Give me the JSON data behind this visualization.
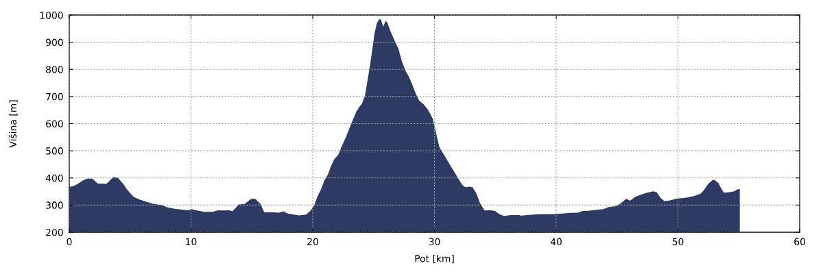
{
  "chart_data": {
    "type": "area",
    "xlabel": "Pot [km]",
    "ylabel": "Višina [m]",
    "color": "#2c3a64",
    "x": [
      0,
      0.32,
      0.69,
      1.16,
      1.54,
      1.91,
      2.35,
      2.66,
      3.04,
      3.32,
      3.6,
      3.98,
      4.41,
      4.82,
      5.29,
      5.85,
      6.42,
      6.89,
      7.64,
      8.01,
      8.57,
      9.14,
      9.79,
      10.04,
      10.26,
      11.1,
      11.76,
      12.23,
      12.7,
      13.17,
      13.41,
      13.92,
      14.39,
      14.95,
      15.29,
      15.7,
      16.02,
      16.64,
      17.2,
      17.58,
      17.95,
      18.9,
      19.46,
      19.83,
      20.11,
      20.39,
      20.67,
      20.96,
      21.24,
      21.52,
      21.8,
      22.08,
      22.36,
      22.73,
      23.11,
      23.58,
      23.86,
      24.04,
      24.29,
      24.51,
      24.7,
      24.89,
      25.07,
      25.26,
      25.45,
      25.6,
      25.79,
      25.98,
      26.1,
      26.39,
      26.76,
      27.04,
      27.32,
      27.6,
      27.88,
      28.16,
      28.45,
      28.73,
      29.1,
      29.38,
      29.66,
      29.85,
      30.04,
      30.22,
      30.41,
      30.69,
      30.97,
      31.25,
      31.54,
      31.82,
      32.1,
      32.38,
      32.57,
      32.85,
      33.13,
      33.46,
      33.75,
      34.12,
      34.59,
      34.96,
      35.34,
      35.71,
      36.27,
      36.93,
      37.12,
      37.58,
      38.52,
      40.02,
      41.14,
      41.8,
      42.13,
      42.64,
      43.2,
      43.86,
      44.33,
      44.89,
      45.36,
      45.73,
      46.07,
      46.48,
      46.95,
      47.42,
      47.98,
      48.26,
      48.54,
      48.88,
      49.29,
      49.85,
      50.79,
      51.35,
      51.82,
      52.1,
      52.47,
      52.85,
      53.03,
      53.31,
      53.6,
      53.78,
      54.16,
      54.63,
      54.87,
      55.08
    ],
    "values": [
      367,
      370,
      378,
      392,
      398,
      397,
      379,
      379,
      378,
      390,
      403,
      401,
      379,
      353,
      330,
      319,
      311,
      305,
      300,
      292,
      287,
      284,
      280,
      286,
      282,
      275,
      275,
      281,
      280,
      281,
      277,
      302,
      304,
      323,
      323,
      304,
      273,
      274,
      272,
      277,
      269,
      262,
      265,
      280,
      298,
      332,
      357,
      391,
      412,
      446,
      471,
      484,
      514,
      551,
      594,
      644,
      664,
      674,
      703,
      762,
      813,
      872,
      931,
      969,
      984,
      984,
      957,
      978,
      975,
      940,
      902,
      876,
      830,
      796,
      775,
      746,
      712,
      686,
      671,
      657,
      636,
      619,
      585,
      547,
      513,
      492,
      471,
      450,
      429,
      408,
      387,
      370,
      366,
      368,
      366,
      341,
      306,
      280,
      281,
      279,
      266,
      260,
      263,
      263,
      261,
      263,
      266,
      267,
      271,
      272,
      278,
      279,
      282,
      285,
      293,
      296,
      308,
      323,
      316,
      330,
      338,
      345,
      351,
      347,
      328,
      315,
      317,
      323,
      328,
      334,
      341,
      353,
      377,
      393,
      392,
      382,
      358,
      346,
      347,
      351,
      358,
      359
    ],
    "xlim": [
      0,
      60
    ],
    "xticks": [
      0,
      10,
      20,
      30,
      40,
      50,
      60
    ],
    "ylim": [
      200,
      1000
    ],
    "yticks": [
      200,
      300,
      400,
      500,
      600,
      700,
      800,
      900,
      1000
    ],
    "grid": true
  }
}
